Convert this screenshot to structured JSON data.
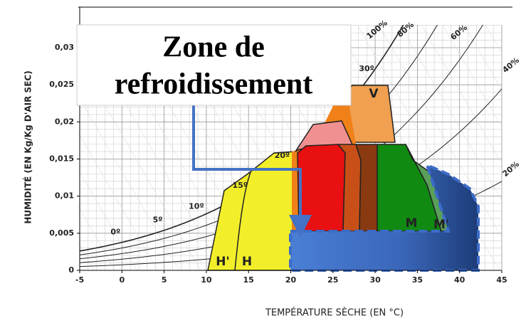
{
  "chart_data": {
    "type": "psychrometric",
    "title_lines": [
      "Zone de",
      "refroidissement"
    ],
    "x_label": "TEMPÉRATURE SÈCHE (EN °C)",
    "y_label": "HUMIDITÉ (EN Kg/Kg D'AIR SEC)",
    "xlim": [
      -5,
      45
    ],
    "xticks": [
      -5,
      0,
      5,
      10,
      15,
      20,
      25,
      30,
      35,
      40,
      45
    ],
    "ylim": [
      0,
      0.033
    ],
    "yticks": [
      0,
      {
        "value": 0.005,
        "label": "0,005"
      },
      {
        "value": 0.01,
        "label": "0,01"
      },
      {
        "value": 0.015,
        "label": "0,015"
      },
      {
        "value": 0.02,
        "label": "0,02"
      },
      {
        "value": 0.025,
        "label": "0,025"
      },
      {
        "value": 0.03,
        "label": "0,03"
      }
    ],
    "rh_curves": [
      {
        "value": 100,
        "label": "100%"
      },
      {
        "value": 80,
        "label": "80%"
      },
      {
        "value": 60,
        "label": "60%"
      },
      {
        "value": 40,
        "label": "40%"
      },
      {
        "value": 20,
        "label": "20%"
      }
    ],
    "temperature_labels": [
      {
        "value": 0,
        "label": "0º"
      },
      {
        "value": 5,
        "label": "5º"
      },
      {
        "value": 10,
        "label": "10º"
      },
      {
        "value": 15,
        "label": "15º"
      },
      {
        "value": 20,
        "label": "20º"
      },
      {
        "value": 30,
        "label": "30º"
      }
    ],
    "zone_labels": [
      "H'",
      "H",
      "M",
      "M'",
      "V"
    ],
    "grid": true
  }
}
